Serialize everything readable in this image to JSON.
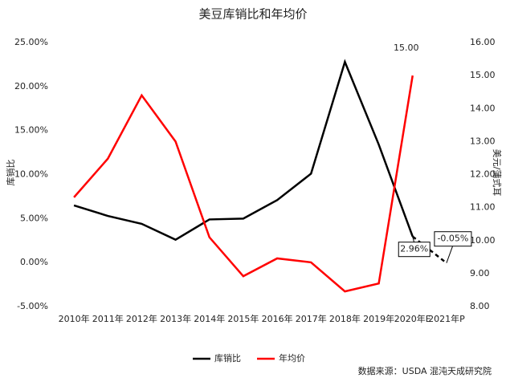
{
  "chart_data": {
    "type": "line",
    "title": "美豆库销比和年均价",
    "y_label": "库销比",
    "y2_label": "美元/蒲式耳",
    "source": "数据来源：USDA 混沌天成研究院",
    "categories": [
      "2010年",
      "2011年",
      "2012年",
      "2013年",
      "2014年",
      "2015年",
      "2016年",
      "2017年",
      "2018年",
      "2019年",
      "2020年E",
      "2021年P"
    ],
    "series": [
      {
        "name": "库销比",
        "color": "#000000",
        "dash_from": 10,
        "values": [
          6.5,
          5.3,
          4.4,
          2.6,
          4.9,
          5.0,
          7.1,
          10.1,
          22.8,
          13.4,
          2.96,
          -0.05
        ],
        "value_labels": [
          null,
          null,
          null,
          null,
          null,
          null,
          null,
          null,
          null,
          null,
          "2.96%",
          "-0.05%"
        ]
      },
      {
        "name": "年均价",
        "color": "#ff0000",
        "axis": "y2",
        "values": [
          11.31,
          12.48,
          14.4,
          13.0,
          10.1,
          8.92,
          9.46,
          9.34,
          8.46,
          8.7,
          15.0,
          null
        ],
        "value_labels": [
          null,
          null,
          null,
          null,
          null,
          null,
          null,
          null,
          null,
          null,
          "15.00",
          null
        ]
      }
    ],
    "ylim": [
      -5,
      25
    ],
    "yticks": [
      {
        "value": -5,
        "label": "-5.00%"
      },
      {
        "value": 0,
        "label": "0.00%"
      },
      {
        "value": 5,
        "label": "5.00%"
      },
      {
        "value": 10,
        "label": "10.00%"
      },
      {
        "value": 15,
        "label": "15.00%"
      },
      {
        "value": 20,
        "label": "20.00%"
      },
      {
        "value": 25,
        "label": "25.00%"
      }
    ],
    "y2lim": [
      8,
      16
    ],
    "y2ticks": [
      {
        "value": 8,
        "label": "8.00"
      },
      {
        "value": 9,
        "label": "9.00"
      },
      {
        "value": 10,
        "label": "10.00"
      },
      {
        "value": 11,
        "label": "11.00"
      },
      {
        "value": 12,
        "label": "12.00"
      },
      {
        "value": 13,
        "label": "13.00"
      },
      {
        "value": 14,
        "label": "14.00"
      },
      {
        "value": 15,
        "label": "15.00"
      },
      {
        "value": 16,
        "label": "16.00"
      }
    ],
    "grid": false
  }
}
